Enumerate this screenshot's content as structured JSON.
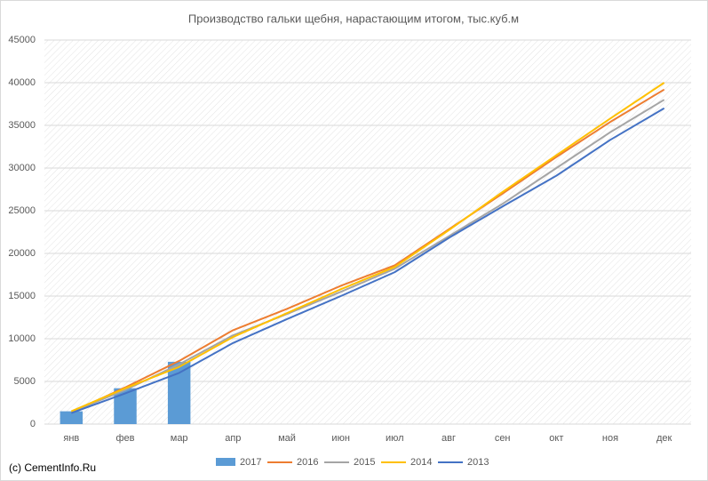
{
  "chart_data": {
    "type": "combo",
    "title": "Производство гальки щебня, нарастающим итогом, тыс.куб.м",
    "source": "(c) CementInfo.Ru",
    "categories": [
      "янв",
      "фев",
      "мар",
      "апр",
      "май",
      "июн",
      "июл",
      "авг",
      "сен",
      "окт",
      "ноя",
      "дек"
    ],
    "series": [
      {
        "name": "2017",
        "type": "bar",
        "color": "#5b9bd5",
        "values": [
          1500,
          4200,
          7300,
          null,
          null,
          null,
          null,
          null,
          null,
          null,
          null,
          null
        ]
      },
      {
        "name": "2016",
        "type": "line",
        "color": "#ed7d31",
        "values": [
          1400,
          4300,
          7400,
          11000,
          13500,
          16200,
          18600,
          22800,
          27000,
          31300,
          35400,
          39200
        ]
      },
      {
        "name": "2015",
        "type": "line",
        "color": "#a5a5a5",
        "values": [
          1400,
          4000,
          7000,
          10400,
          12900,
          15500,
          18200,
          22000,
          25800,
          30000,
          34200,
          38000
        ]
      },
      {
        "name": "2014",
        "type": "line",
        "color": "#ffc000",
        "values": [
          1500,
          4200,
          6700,
          10200,
          13000,
          15800,
          18400,
          22700,
          27200,
          31500,
          35800,
          40000
        ]
      },
      {
        "name": "2013",
        "type": "line",
        "color": "#4472c4",
        "values": [
          1300,
          3600,
          6000,
          9500,
          12300,
          15000,
          17800,
          21800,
          25500,
          29100,
          33300,
          37000
        ]
      }
    ],
    "ylim": [
      0,
      45000
    ],
    "yticks": [
      0,
      5000,
      10000,
      15000,
      20000,
      25000,
      30000,
      35000,
      40000,
      45000
    ],
    "grid": true,
    "legend": "bottom"
  }
}
